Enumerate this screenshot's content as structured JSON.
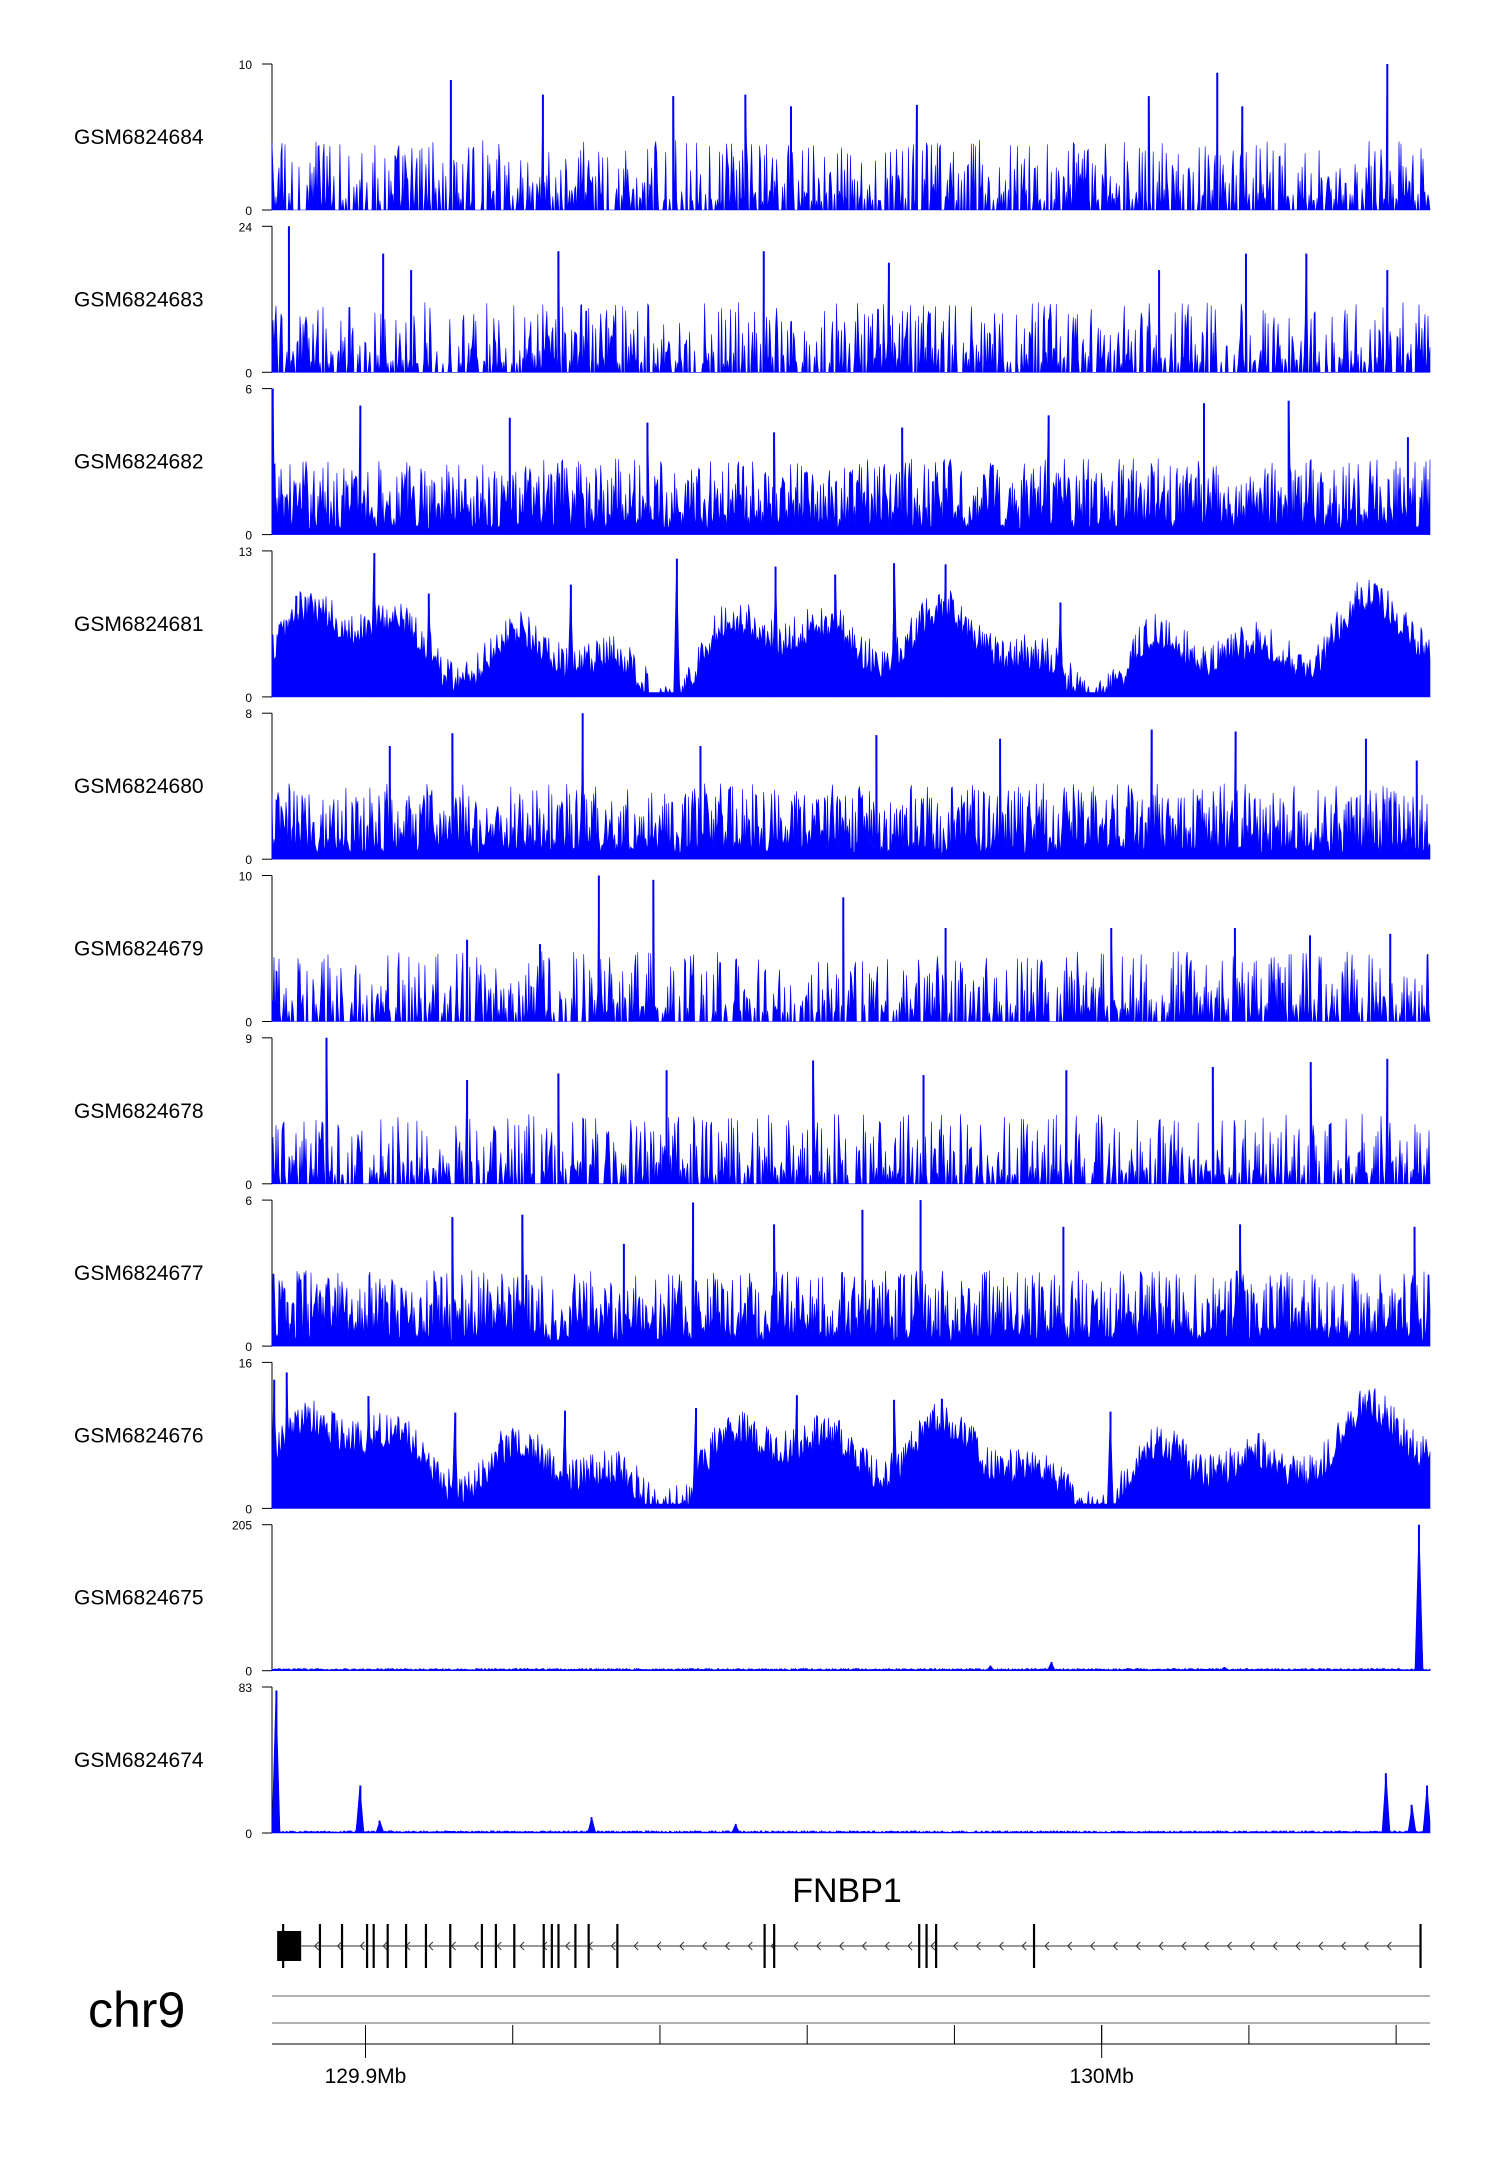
{
  "chart_data": {
    "type": "area",
    "xlabel": "",
    "ylabel": "",
    "x_axis": {
      "chromosome": "chr9",
      "unit": "Mb",
      "range_mb": [
        129.8873,
        130.0446
      ],
      "labeled_ticks": [
        {
          "value_mb": 129.9,
          "label": "129.9Mb"
        },
        {
          "value_mb": 130.0,
          "label": "130Mb"
        }
      ],
      "minor_ticks_mb": [
        129.9,
        129.92,
        129.94,
        129.96,
        129.98,
        130.0,
        130.02,
        130.04
      ]
    },
    "gene": {
      "name": "FNBP1",
      "strand": "-",
      "start_mb": 129.888,
      "end_mb": 130.0433,
      "exons_mb": [
        129.888,
        129.8888,
        129.8938,
        129.8968,
        129.9002,
        129.9011,
        129.903,
        129.9055,
        129.9082,
        129.9115,
        129.9158,
        129.9177,
        129.9202,
        129.9242,
        129.9253,
        129.9262,
        129.9285,
        129.9303,
        129.9342,
        129.9542,
        129.9555,
        129.9752,
        129.9762,
        129.9775,
        129.9908,
        130.0433
      ],
      "color": "#000000"
    },
    "series_color": "#0000ff",
    "series": [
      {
        "name": "GSM6824684",
        "ymax": 10,
        "ymin": 0,
        "profile": "sparse-spiky",
        "peaks": [
          {
            "x": 129.9116,
            "y": 8.9
          },
          {
            "x": 129.9241,
            "y": 7.9
          },
          {
            "x": 129.9418,
            "y": 7.8
          },
          {
            "x": 129.9516,
            "y": 7.9
          },
          {
            "x": 129.9578,
            "y": 7.1
          },
          {
            "x": 129.9749,
            "y": 7.2
          },
          {
            "x": 130.0064,
            "y": 7.8
          },
          {
            "x": 130.0157,
            "y": 9.4
          },
          {
            "x": 130.0191,
            "y": 7.1
          },
          {
            "x": 130.0388,
            "y": 10.0
          }
        ]
      },
      {
        "name": "GSM6824683",
        "ymax": 24,
        "ymin": 0,
        "profile": "sparse-spiky",
        "peaks": [
          {
            "x": 129.8896,
            "y": 24.0
          },
          {
            "x": 129.9024,
            "y": 19.5
          },
          {
            "x": 129.9062,
            "y": 16.8
          },
          {
            "x": 129.9262,
            "y": 19.9
          },
          {
            "x": 129.9541,
            "y": 19.9
          },
          {
            "x": 129.9711,
            "y": 18.0
          },
          {
            "x": 130.0078,
            "y": 16.8
          },
          {
            "x": 130.0196,
            "y": 19.5
          },
          {
            "x": 130.0278,
            "y": 19.5
          },
          {
            "x": 130.0388,
            "y": 16.8
          }
        ]
      },
      {
        "name": "GSM6824682",
        "ymax": 6,
        "ymin": 0,
        "profile": "dense-spiky",
        "peaks": [
          {
            "x": 129.8874,
            "y": 6.0
          },
          {
            "x": 129.8993,
            "y": 5.3
          },
          {
            "x": 129.9196,
            "y": 4.8
          },
          {
            "x": 129.9383,
            "y": 4.6
          },
          {
            "x": 129.9555,
            "y": 4.2
          },
          {
            "x": 129.9729,
            "y": 4.4
          },
          {
            "x": 129.9928,
            "y": 4.9
          },
          {
            "x": 130.0139,
            "y": 5.4
          },
          {
            "x": 130.0254,
            "y": 5.5
          },
          {
            "x": 130.0416,
            "y": 4.0
          }
        ]
      },
      {
        "name": "GSM6824681",
        "ymax": 13,
        "ymin": 0,
        "profile": "broad-domains",
        "peaks": [
          {
            "x": 129.8906,
            "y": 9.0
          },
          {
            "x": 129.9012,
            "y": 12.8
          },
          {
            "x": 129.9086,
            "y": 9.2
          },
          {
            "x": 129.9279,
            "y": 10.0
          },
          {
            "x": 129.9423,
            "y": 12.3
          },
          {
            "x": 129.9557,
            "y": 11.6
          },
          {
            "x": 129.9638,
            "y": 10.9
          },
          {
            "x": 129.9718,
            "y": 11.9
          },
          {
            "x": 129.9788,
            "y": 11.8
          },
          {
            "x": 129.9944,
            "y": 8.4
          }
        ]
      },
      {
        "name": "GSM6824680",
        "ymax": 8,
        "ymin": 0,
        "profile": "dense-spiky",
        "peaks": [
          {
            "x": 129.9033,
            "y": 6.2
          },
          {
            "x": 129.9118,
            "y": 6.9
          },
          {
            "x": 129.9295,
            "y": 8.0
          },
          {
            "x": 129.9455,
            "y": 6.2
          },
          {
            "x": 129.9694,
            "y": 6.8
          },
          {
            "x": 129.9862,
            "y": 6.6
          },
          {
            "x": 130.0068,
            "y": 7.1
          },
          {
            "x": 130.0182,
            "y": 7.0
          },
          {
            "x": 130.0359,
            "y": 6.6
          },
          {
            "x": 130.0428,
            "y": 5.4
          }
        ]
      },
      {
        "name": "GSM6824679",
        "ymax": 10,
        "ymin": 0,
        "profile": "sparse-spiky",
        "peaks": [
          {
            "x": 129.9138,
            "y": 5.6
          },
          {
            "x": 129.9237,
            "y": 5.3
          },
          {
            "x": 129.9317,
            "y": 10.0
          },
          {
            "x": 129.9391,
            "y": 9.7
          },
          {
            "x": 129.9649,
            "y": 8.5
          },
          {
            "x": 129.9788,
            "y": 6.4
          },
          {
            "x": 130.0013,
            "y": 6.4
          },
          {
            "x": 130.0181,
            "y": 6.4
          },
          {
            "x": 130.0283,
            "y": 5.9
          },
          {
            "x": 130.0392,
            "y": 6.0
          }
        ]
      },
      {
        "name": "GSM6824678",
        "ymax": 9,
        "ymin": 0,
        "profile": "sparse-spiky",
        "peaks": [
          {
            "x": 129.8947,
            "y": 9.0
          },
          {
            "x": 129.9138,
            "y": 6.4
          },
          {
            "x": 129.9262,
            "y": 6.8
          },
          {
            "x": 129.9409,
            "y": 7.0
          },
          {
            "x": 129.9608,
            "y": 7.6
          },
          {
            "x": 129.9758,
            "y": 6.7
          },
          {
            "x": 129.9952,
            "y": 7.0
          },
          {
            "x": 130.0151,
            "y": 7.2
          },
          {
            "x": 130.0284,
            "y": 7.5
          },
          {
            "x": 130.0388,
            "y": 7.7
          }
        ]
      },
      {
        "name": "GSM6824677",
        "ymax": 6,
        "ymin": 0,
        "profile": "dense-spiky",
        "peaks": [
          {
            "x": 129.9118,
            "y": 5.3
          },
          {
            "x": 129.9213,
            "y": 5.4
          },
          {
            "x": 129.9351,
            "y": 4.2
          },
          {
            "x": 129.9445,
            "y": 5.9
          },
          {
            "x": 129.9555,
            "y": 5.0
          },
          {
            "x": 129.9675,
            "y": 5.6
          },
          {
            "x": 129.9754,
            "y": 6.0
          },
          {
            "x": 129.9948,
            "y": 4.9
          },
          {
            "x": 130.0188,
            "y": 5.0
          },
          {
            "x": 130.0425,
            "y": 4.9
          }
        ]
      },
      {
        "name": "GSM6824676",
        "ymax": 16,
        "ymin": 0,
        "profile": "broad-domains",
        "peaks": [
          {
            "x": 129.8876,
            "y": 14.1
          },
          {
            "x": 129.8893,
            "y": 14.9
          },
          {
            "x": 129.9004,
            "y": 12.3
          },
          {
            "x": 129.9122,
            "y": 10.5
          },
          {
            "x": 129.9271,
            "y": 10.7
          },
          {
            "x": 129.9449,
            "y": 11.0
          },
          {
            "x": 129.9586,
            "y": 12.4
          },
          {
            "x": 129.9718,
            "y": 11.9
          },
          {
            "x": 129.9783,
            "y": 12.0
          },
          {
            "x": 130.0012,
            "y": 10.6
          }
        ]
      },
      {
        "name": "GSM6824675",
        "ymax": 205,
        "ymin": 0,
        "profile": "flat-with-peak",
        "peaks": [
          {
            "x": 129.8874,
            "y": 2.0
          },
          {
            "x": 129.9849,
            "y": 7.0
          },
          {
            "x": 129.9932,
            "y": 12.0
          },
          {
            "x": 130.0167,
            "y": 5.0
          },
          {
            "x": 130.0431,
            "y": 205.0
          }
        ]
      },
      {
        "name": "GSM6824674",
        "ymax": 83,
        "ymin": 0,
        "profile": "flat-with-peak",
        "peaks": [
          {
            "x": 129.8879,
            "y": 81.0
          },
          {
            "x": 129.8993,
            "y": 27.0
          },
          {
            "x": 129.9019,
            "y": 7.0
          },
          {
            "x": 129.9307,
            "y": 9.0
          },
          {
            "x": 129.9503,
            "y": 5.0
          },
          {
            "x": 130.0386,
            "y": 34.0
          },
          {
            "x": 130.0421,
            "y": 16.0
          },
          {
            "x": 130.0442,
            "y": 27.0
          }
        ]
      }
    ]
  }
}
